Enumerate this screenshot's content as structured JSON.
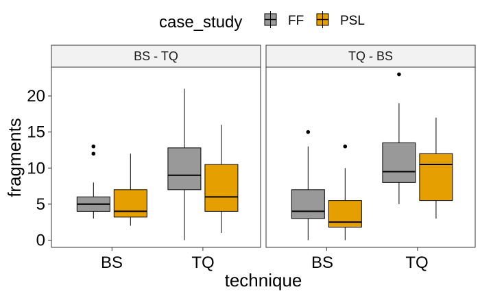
{
  "chart_data": {
    "type": "boxplot",
    "xlabel": "technique",
    "ylabel": "fragments",
    "ylim": [
      -1,
      24
    ],
    "yticks": [
      0,
      5,
      10,
      15,
      20
    ],
    "categories": [
      "BS",
      "TQ"
    ],
    "legend": {
      "title": "case_study",
      "position": "top",
      "entries": [
        {
          "name": "FF",
          "color": "#999999"
        },
        {
          "name": "PSL",
          "color": "#E69F00"
        }
      ]
    },
    "panels": [
      {
        "label": "BS - TQ",
        "groups": [
          {
            "category": "BS",
            "series": "FF",
            "min": 3,
            "q1": 4,
            "median": 5,
            "q3": 6,
            "max": 8,
            "outliers": [
              12,
              13
            ]
          },
          {
            "category": "BS",
            "series": "PSL",
            "min": 2,
            "q1": 3.2,
            "median": 4,
            "q3": 7,
            "max": 12,
            "outliers": []
          },
          {
            "category": "TQ",
            "series": "FF",
            "min": 0,
            "q1": 7,
            "median": 9,
            "q3": 12.8,
            "max": 21,
            "outliers": []
          },
          {
            "category": "TQ",
            "series": "PSL",
            "min": 1,
            "q1": 4,
            "median": 6,
            "q3": 10.5,
            "max": 16,
            "outliers": []
          }
        ]
      },
      {
        "label": "TQ - BS",
        "groups": [
          {
            "category": "BS",
            "series": "FF",
            "min": 0,
            "q1": 3,
            "median": 4,
            "q3": 7,
            "max": 13,
            "outliers": [
              15
            ]
          },
          {
            "category": "BS",
            "series": "PSL",
            "min": 0,
            "q1": 1.8,
            "median": 2.5,
            "q3": 5.5,
            "max": 10,
            "outliers": [
              13
            ]
          },
          {
            "category": "TQ",
            "series": "FF",
            "min": 5,
            "q1": 8,
            "median": 9.5,
            "q3": 13.5,
            "max": 19,
            "outliers": [
              23
            ]
          },
          {
            "category": "TQ",
            "series": "PSL",
            "min": 3,
            "q1": 5.5,
            "median": 10.5,
            "q3": 12,
            "max": 17,
            "outliers": []
          }
        ]
      }
    ]
  }
}
